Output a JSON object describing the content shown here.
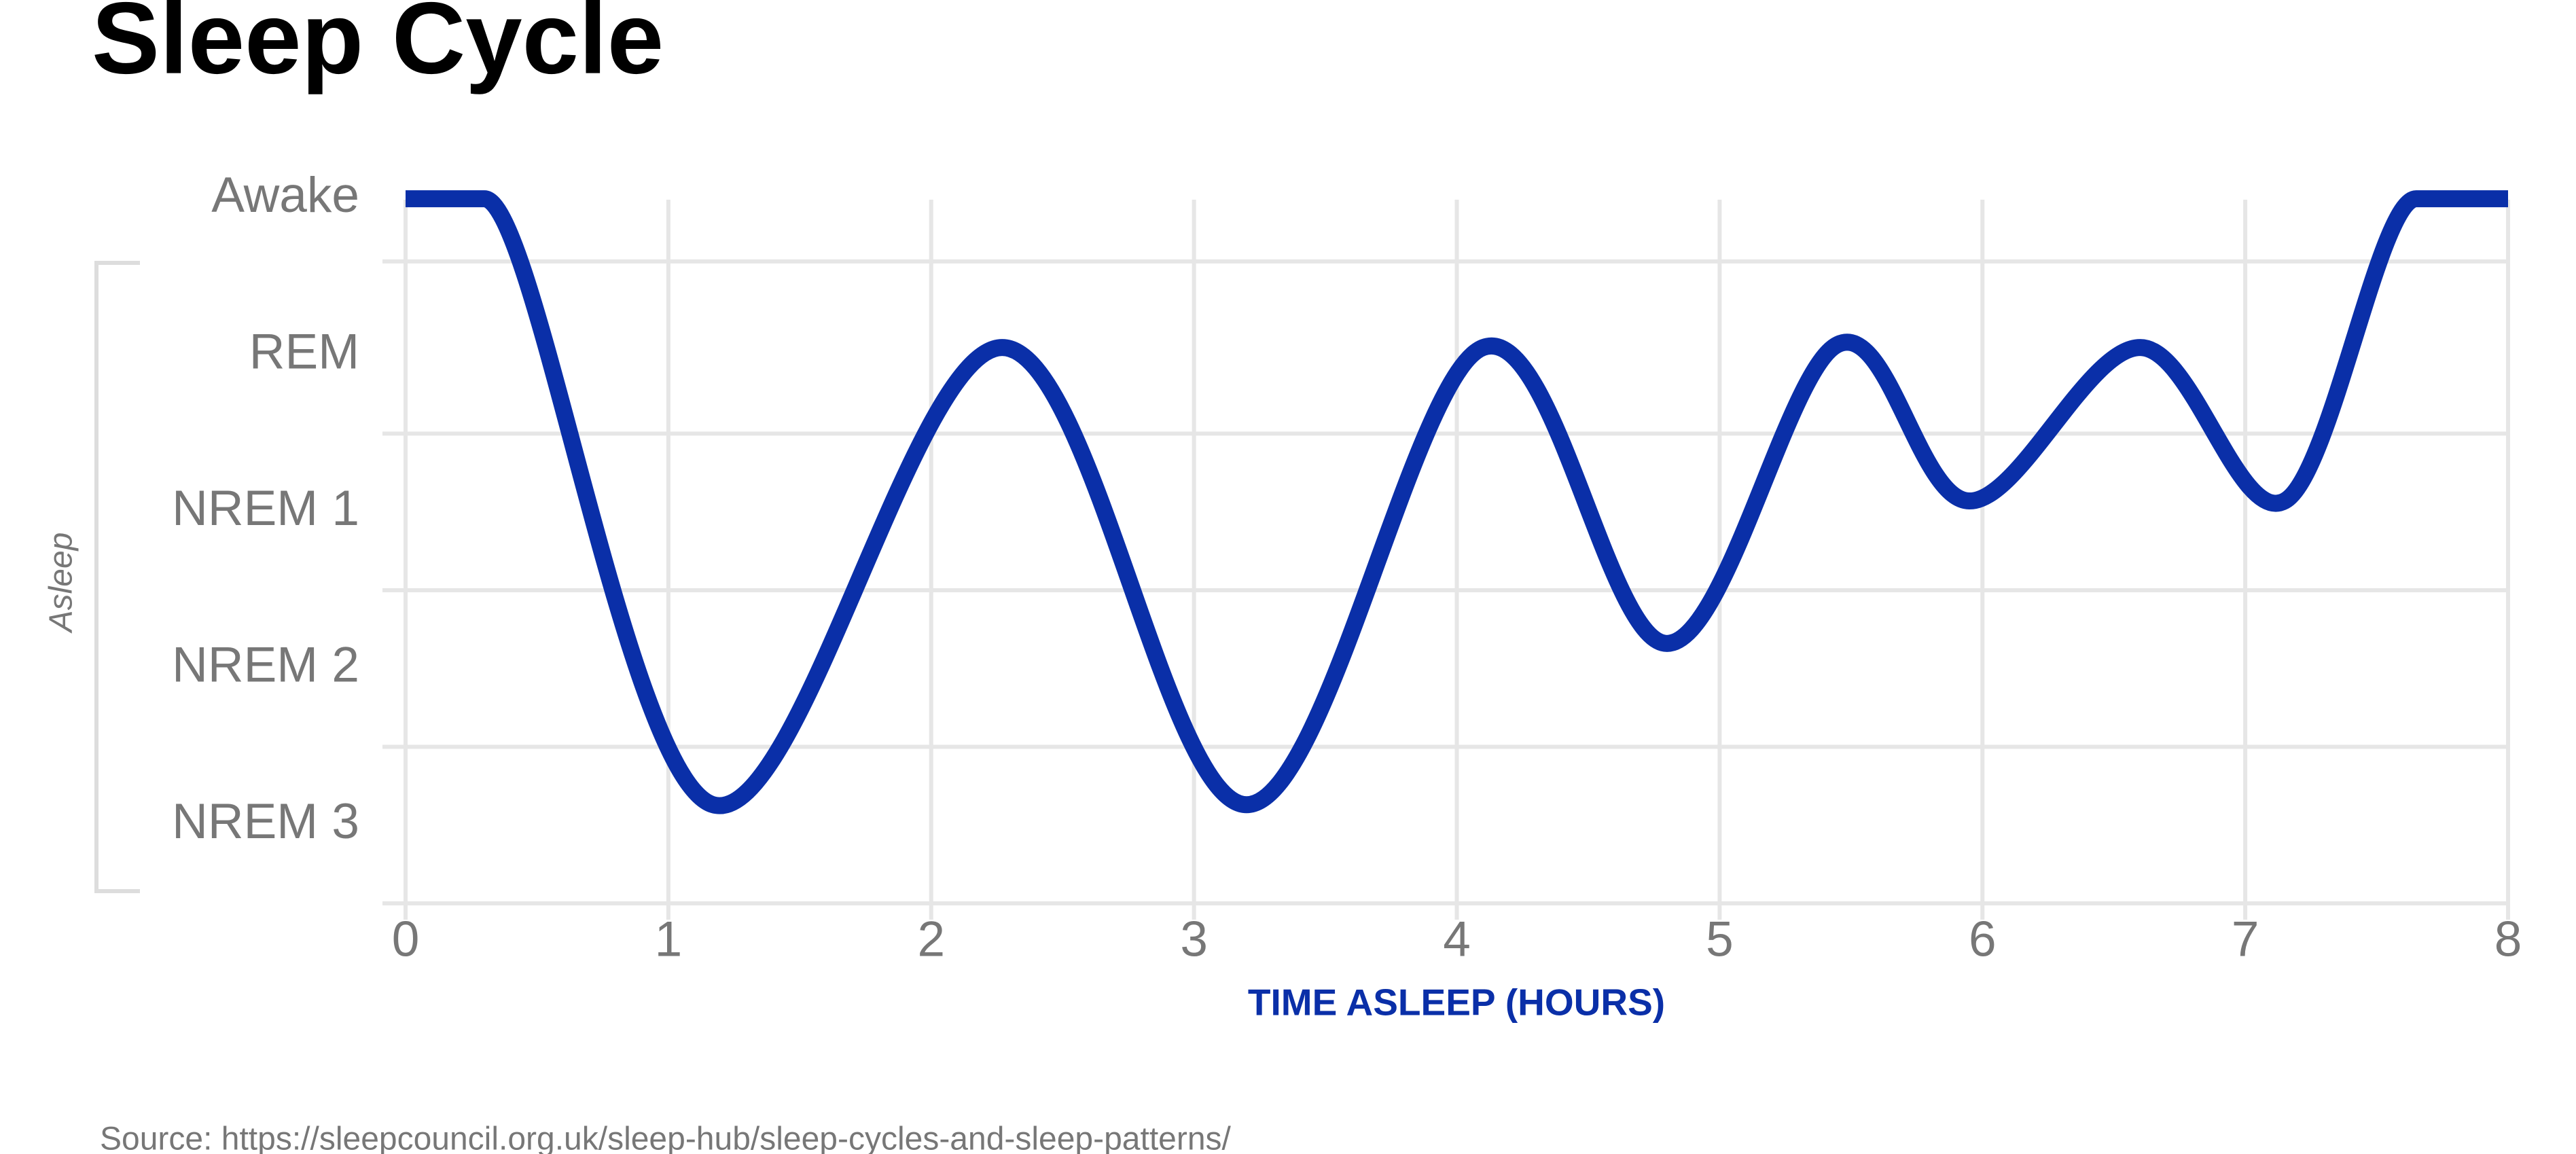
{
  "chart_data": {
    "type": "line",
    "title": "Sleep Cycle",
    "x_label": "TIME ASLEEP (HOURS)",
    "y_group_label": "Asleep",
    "source": "Source: https://sleepcouncil.org.uk/sleep-hub/sleep-cycles-and-sleep-patterns/",
    "x": [
      0,
      0.3,
      1.17,
      2.27,
      3.2,
      4.1,
      4.8,
      5.45,
      5.95,
      6.6,
      7.15,
      7.65,
      8
    ],
    "values": [
      5,
      5,
      1.13,
      4.05,
      1.13,
      4.05,
      2.16,
      4.07,
      3.07,
      4.05,
      3.07,
      5,
      5
    ],
    "color": "#0a2fa8",
    "xlim": [
      0,
      8
    ],
    "xticks": [
      0,
      1,
      2,
      3,
      4,
      5,
      6,
      7,
      8
    ],
    "ylim": [
      0.5,
      5.25
    ],
    "yticks": [
      {
        "value": 1,
        "label": "NREM 3"
      },
      {
        "value": 2,
        "label": "NREM 2"
      },
      {
        "value": 3,
        "label": "NREM 1"
      },
      {
        "value": 4,
        "label": "REM"
      },
      {
        "value": 5,
        "label": "Awake"
      }
    ],
    "ygrid": [
      1.5,
      2.5,
      3.5,
      4.6
    ],
    "grid": true
  }
}
